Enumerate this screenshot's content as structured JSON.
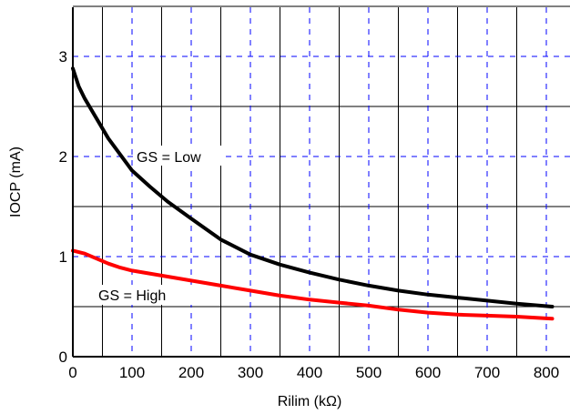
{
  "chart_data": {
    "type": "line",
    "title": "",
    "xlabel": "Rilim (kΩ)",
    "ylabel": "IOCP (mA)",
    "xlim": [
      0,
      830
    ],
    "ylim": [
      0,
      3.5
    ],
    "x_ticks": [
      "0",
      "100",
      "200",
      "300",
      "400",
      "500",
      "600",
      "700",
      "800"
    ],
    "y_ticks": [
      "0",
      "1",
      "2",
      "3"
    ],
    "grid": true,
    "series": [
      {
        "name": "GS = Low",
        "color": "#000000",
        "x": [
          0,
          10,
          20,
          40,
          60,
          80,
          100,
          130,
          160,
          200,
          250,
          300,
          350,
          400,
          450,
          500,
          550,
          600,
          650,
          700,
          750,
          810
        ],
        "values": [
          2.88,
          2.7,
          2.58,
          2.38,
          2.18,
          2.02,
          1.86,
          1.7,
          1.55,
          1.38,
          1.17,
          1.02,
          0.92,
          0.84,
          0.77,
          0.71,
          0.66,
          0.62,
          0.59,
          0.56,
          0.53,
          0.5
        ]
      },
      {
        "name": "GS = High",
        "color": "#ff0000",
        "x": [
          0,
          20,
          40,
          60,
          80,
          100,
          150,
          200,
          250,
          300,
          350,
          400,
          450,
          500,
          550,
          600,
          650,
          700,
          750,
          810
        ],
        "values": [
          1.06,
          1.03,
          0.98,
          0.93,
          0.89,
          0.86,
          0.81,
          0.76,
          0.71,
          0.66,
          0.61,
          0.57,
          0.54,
          0.51,
          0.47,
          0.44,
          0.42,
          0.41,
          0.4,
          0.38
        ]
      }
    ],
    "annotations": [
      "GS = Low",
      "GS = High"
    ]
  },
  "colors": {
    "grid_solid": "#000000",
    "grid_dashed": "#0000ff",
    "axis": "#000000"
  }
}
